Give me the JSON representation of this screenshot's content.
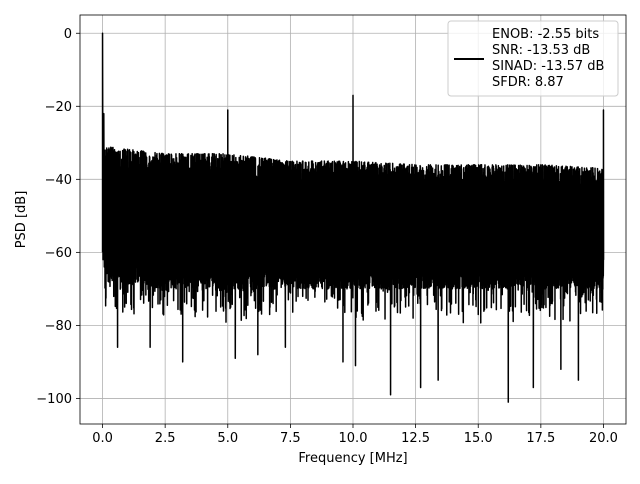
{
  "chart_data": {
    "type": "line",
    "title": "",
    "xlabel": "Frequency [MHz]",
    "ylabel": "PSD [dB]",
    "xlim": [
      -0.9,
      20.9
    ],
    "ylim": [
      -107,
      5
    ],
    "xticks": [
      0.0,
      2.5,
      5.0,
      7.5,
      10.0,
      12.5,
      15.0,
      17.5,
      20.0
    ],
    "xtick_labels": [
      "0.0",
      "2.5",
      "5.0",
      "7.5",
      "10.0",
      "12.5",
      "15.0",
      "17.5",
      "20.0"
    ],
    "yticks": [
      0,
      -20,
      -40,
      -60,
      -80,
      -100
    ],
    "ytick_labels": [
      "0",
      "−20",
      "−40",
      "−60",
      "−80",
      "−100"
    ],
    "grid": true,
    "legend_position": "top-right",
    "series": [
      {
        "color": "#000000",
        "noise_floor_upper_db": [
          [
            0.1,
            -31
          ],
          [
            2.5,
            -33
          ],
          [
            5.0,
            -33
          ],
          [
            7.5,
            -35
          ],
          [
            10.0,
            -35
          ],
          [
            12.5,
            -36
          ],
          [
            15.0,
            -36
          ],
          [
            17.5,
            -36
          ],
          [
            20.0,
            -37
          ]
        ],
        "noise_floor_lower_db": [
          [
            0.1,
            -66
          ],
          [
            2.5,
            -68
          ],
          [
            5.0,
            -68
          ],
          [
            7.5,
            -68
          ],
          [
            10.0,
            -68
          ],
          [
            12.5,
            -68
          ],
          [
            15.0,
            -68
          ],
          [
            17.5,
            -68
          ],
          [
            20.0,
            -68
          ]
        ],
        "spikes": [
          {
            "x": 0.0,
            "y": 0
          },
          {
            "x": 0.05,
            "y": -22
          },
          {
            "x": 5.0,
            "y": -21
          },
          {
            "x": 10.0,
            "y": -17
          },
          {
            "x": 20.0,
            "y": -21
          }
        ],
        "deep_dips": [
          {
            "x": 0.6,
            "y": -86
          },
          {
            "x": 1.9,
            "y": -86
          },
          {
            "x": 3.2,
            "y": -90
          },
          {
            "x": 5.3,
            "y": -89
          },
          {
            "x": 6.2,
            "y": -88
          },
          {
            "x": 7.3,
            "y": -86
          },
          {
            "x": 9.6,
            "y": -90
          },
          {
            "x": 10.1,
            "y": -91
          },
          {
            "x": 11.5,
            "y": -99
          },
          {
            "x": 12.7,
            "y": -97
          },
          {
            "x": 13.4,
            "y": -95
          },
          {
            "x": 16.2,
            "y": -101
          },
          {
            "x": 17.2,
            "y": -97
          },
          {
            "x": 18.3,
            "y": -92
          },
          {
            "x": 19.0,
            "y": -95
          }
        ]
      }
    ],
    "legend": {
      "lines": [
        "ENOB: -2.55 bits",
        "SNR: -13.53 dB",
        "SINAD: -13.57 dB",
        "SFDR: 8.87"
      ]
    }
  }
}
